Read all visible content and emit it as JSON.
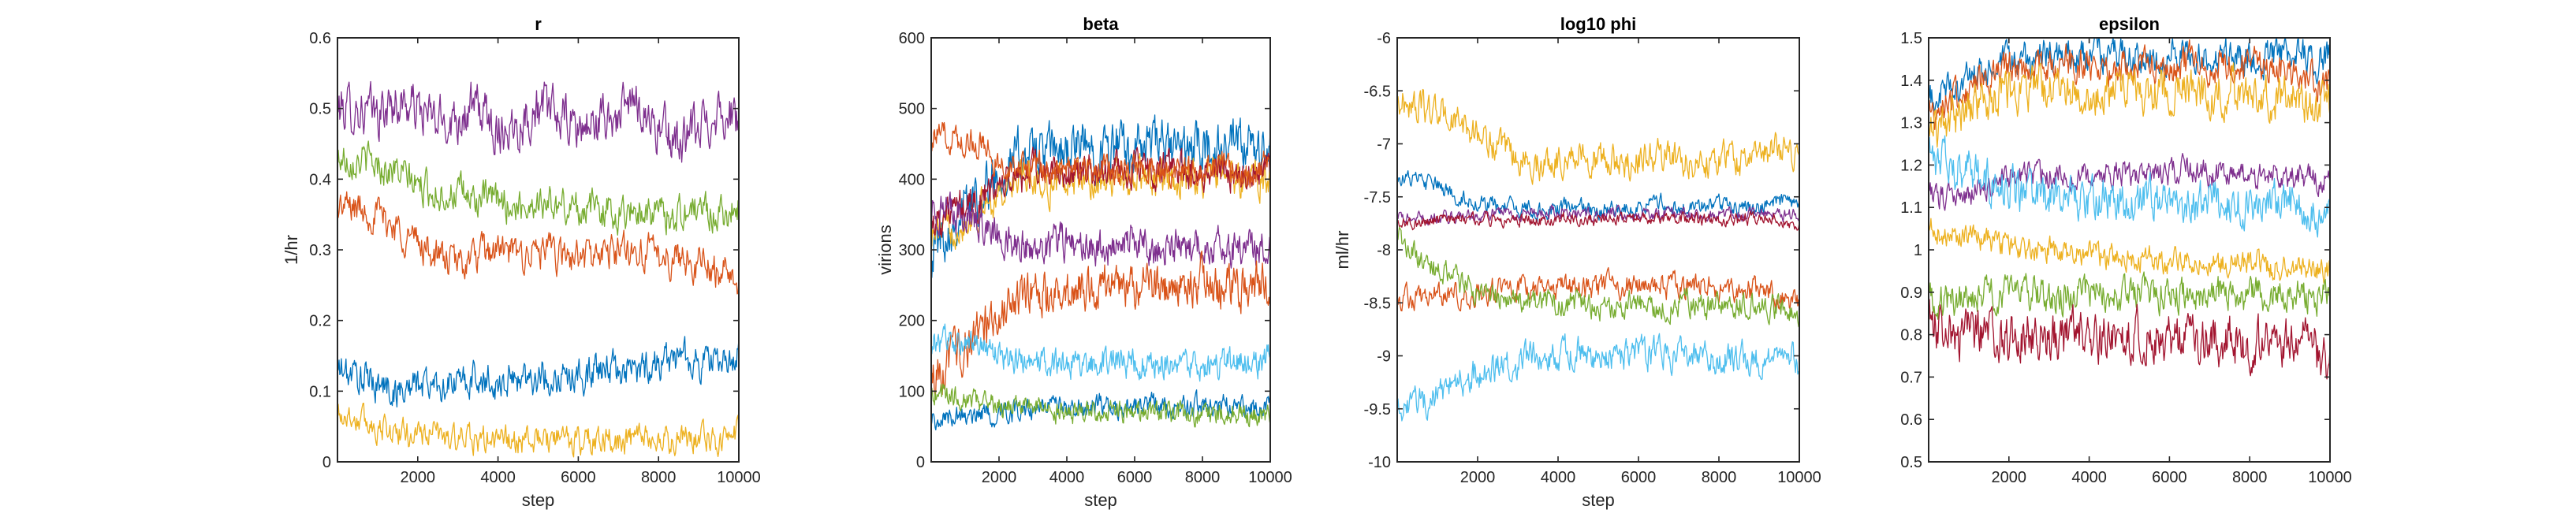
{
  "chart_data": [
    {
      "type": "line",
      "title": "r",
      "xlabel": "step",
      "ylabel": "1/hr",
      "xlim": [
        0,
        10000
      ],
      "ylim": [
        0,
        0.6
      ],
      "xticks": [
        2000,
        4000,
        6000,
        8000,
        10000
      ],
      "yticks": [
        0,
        0.1,
        0.2,
        0.3,
        0.4,
        0.5,
        0.6
      ],
      "x": [
        0,
        500,
        1000,
        1500,
        2000,
        2500,
        3000,
        3500,
        4000,
        4500,
        5000,
        5500,
        6000,
        6500,
        7000,
        7500,
        8000,
        8500,
        9000,
        9500,
        10000
      ],
      "series": [
        {
          "color": "#7E2F8E",
          "noise": 0.035,
          "values": [
            0.5,
            0.5,
            0.49,
            0.51,
            0.5,
            0.48,
            0.49,
            0.5,
            0.47,
            0.48,
            0.5,
            0.49,
            0.47,
            0.48,
            0.49,
            0.51,
            0.47,
            0.45,
            0.47,
            0.5,
            0.48
          ]
        },
        {
          "color": "#77AC30",
          "noise": 0.025,
          "values": [
            0.43,
            0.43,
            0.42,
            0.41,
            0.39,
            0.38,
            0.38,
            0.37,
            0.37,
            0.36,
            0.37,
            0.36,
            0.36,
            0.36,
            0.35,
            0.36,
            0.35,
            0.35,
            0.36,
            0.35,
            0.36
          ]
        },
        {
          "color": "#D95319",
          "noise": 0.025,
          "values": [
            0.36,
            0.36,
            0.35,
            0.33,
            0.31,
            0.29,
            0.28,
            0.29,
            0.3,
            0.29,
            0.3,
            0.29,
            0.29,
            0.29,
            0.3,
            0.3,
            0.29,
            0.29,
            0.28,
            0.27,
            0.26
          ]
        },
        {
          "color": "#0072BD",
          "noise": 0.025,
          "values": [
            0.13,
            0.12,
            0.11,
            0.1,
            0.11,
            0.11,
            0.11,
            0.12,
            0.11,
            0.12,
            0.12,
            0.12,
            0.12,
            0.13,
            0.13,
            0.13,
            0.14,
            0.15,
            0.14,
            0.14,
            0.15
          ]
        },
        {
          "color": "#EDB120",
          "noise": 0.02,
          "values": [
            0.07,
            0.06,
            0.05,
            0.04,
            0.04,
            0.04,
            0.03,
            0.03,
            0.03,
            0.03,
            0.03,
            0.03,
            0.03,
            0.03,
            0.03,
            0.03,
            0.03,
            0.03,
            0.03,
            0.03,
            0.04
          ]
        }
      ]
    },
    {
      "type": "line",
      "title": "beta",
      "xlabel": "step",
      "ylabel": "virions",
      "xlim": [
        0,
        10000
      ],
      "ylim": [
        0,
        600
      ],
      "xticks": [
        2000,
        4000,
        6000,
        8000,
        10000
      ],
      "yticks": [
        0,
        100,
        200,
        300,
        400,
        500,
        600
      ],
      "x": [
        0,
        500,
        1000,
        1500,
        2000,
        2500,
        3000,
        3500,
        4000,
        4500,
        5000,
        5500,
        6000,
        6500,
        7000,
        7500,
        8000,
        8500,
        9000,
        9500,
        10000
      ],
      "series": [
        {
          "color": "#0072BD",
          "noise": 35,
          "values": [
            300,
            330,
            360,
            380,
            410,
            430,
            440,
            440,
            440,
            445,
            440,
            445,
            440,
            450,
            445,
            440,
            445,
            440,
            445,
            440,
            440
          ]
        },
        {
          "color": "#EDB120",
          "noise": 25,
          "values": [
            320,
            330,
            340,
            360,
            380,
            400,
            400,
            390,
            400,
            400,
            395,
            400,
            405,
            400,
            395,
            400,
            400,
            405,
            400,
            400,
            400
          ]
        },
        {
          "color": "#A2142F",
          "noise": 25,
          "values": [
            340,
            350,
            360,
            370,
            390,
            400,
            410,
            410,
            405,
            410,
            410,
            415,
            410,
            410,
            415,
            410,
            410,
            415,
            410,
            410,
            415
          ]
        },
        {
          "color": "#D95319",
          "noise": 20,
          "values": [
            460,
            460,
            455,
            450,
            420,
            415,
            420,
            410,
            415,
            410,
            415,
            410,
            420,
            415,
            410,
            415,
            410,
            420,
            415,
            410,
            420
          ]
        },
        {
          "color": "#7E2F8E",
          "noise": 25,
          "values": [
            360,
            350,
            345,
            340,
            320,
            310,
            300,
            310,
            310,
            305,
            300,
            305,
            310,
            300,
            305,
            310,
            300,
            305,
            300,
            300,
            310
          ]
        },
        {
          "color": "#D95319",
          "noise": 30,
          "values": [
            120,
            140,
            160,
            190,
            210,
            230,
            240,
            240,
            245,
            250,
            250,
            255,
            250,
            250,
            245,
            250,
            255,
            245,
            250,
            245,
            250
          ]
        },
        {
          "color": "#4DBEEE",
          "noise": 20,
          "values": [
            170,
            170,
            165,
            160,
            150,
            145,
            140,
            140,
            140,
            135,
            140,
            140,
            135,
            140,
            140,
            140,
            135,
            140,
            140,
            140,
            145
          ]
        },
        {
          "color": "#0072BD",
          "noise": 15,
          "values": [
            60,
            62,
            65,
            68,
            70,
            72,
            75,
            75,
            78,
            78,
            80,
            78,
            80,
            82,
            80,
            78,
            80,
            80,
            80,
            80,
            82
          ]
        },
        {
          "color": "#77AC30",
          "noise": 15,
          "values": [
            100,
            95,
            90,
            85,
            80,
            75,
            75,
            70,
            70,
            70,
            68,
            70,
            68,
            70,
            68,
            66,
            68,
            70,
            68,
            66,
            68
          ]
        }
      ]
    },
    {
      "type": "line",
      "title": "log10 phi",
      "xlabel": "step",
      "ylabel": "ml/hr",
      "xlim": [
        0,
        10000
      ],
      "ylim": [
        -10,
        -6
      ],
      "xticks": [
        2000,
        4000,
        6000,
        8000,
        10000
      ],
      "yticks": [
        -10,
        -9.5,
        -9,
        -8.5,
        -8,
        -7.5,
        -7,
        -6.5,
        -6
      ],
      "x": [
        0,
        500,
        1000,
        1500,
        2000,
        2500,
        3000,
        3500,
        4000,
        4500,
        5000,
        5500,
        6000,
        6500,
        7000,
        7500,
        8000,
        8500,
        9000,
        9500,
        10000
      ],
      "series": [
        {
          "color": "#EDB120",
          "noise": 0.15,
          "values": [
            -6.6,
            -6.65,
            -6.7,
            -6.8,
            -6.9,
            -7.05,
            -7.15,
            -7.2,
            -7.15,
            -7.1,
            -7.15,
            -7.2,
            -7.15,
            -7.1,
            -7.15,
            -7.2,
            -7.1,
            -7.15,
            -7.1,
            -7.05,
            -7.1
          ]
        },
        {
          "color": "#0072BD",
          "noise": 0.08,
          "values": [
            -7.3,
            -7.35,
            -7.4,
            -7.5,
            -7.55,
            -7.6,
            -7.6,
            -7.65,
            -7.6,
            -7.6,
            -7.65,
            -7.6,
            -7.6,
            -7.55,
            -7.6,
            -7.6,
            -7.55,
            -7.6,
            -7.6,
            -7.55,
            -7.6
          ]
        },
        {
          "color": "#7E2F8E",
          "noise": 0.06,
          "values": [
            -7.7,
            -7.7,
            -7.7,
            -7.68,
            -7.68,
            -7.65,
            -7.65,
            -7.67,
            -7.65,
            -7.67,
            -7.66,
            -7.65,
            -7.67,
            -7.65,
            -7.66,
            -7.67,
            -7.65,
            -7.66,
            -7.65,
            -7.67,
            -7.66
          ]
        },
        {
          "color": "#A2142F",
          "noise": 0.06,
          "values": [
            -7.75,
            -7.75,
            -7.72,
            -7.72,
            -7.7,
            -7.72,
            -7.71,
            -7.72,
            -7.7,
            -7.71,
            -7.72,
            -7.7,
            -7.72,
            -7.71,
            -7.7,
            -7.72,
            -7.71,
            -7.72,
            -7.7,
            -7.71,
            -7.75
          ]
        },
        {
          "color": "#D95319",
          "noise": 0.12,
          "values": [
            -8.45,
            -8.45,
            -8.45,
            -8.42,
            -8.4,
            -8.38,
            -8.38,
            -8.36,
            -8.36,
            -8.35,
            -8.36,
            -8.35,
            -8.34,
            -8.36,
            -8.35,
            -8.34,
            -8.36,
            -8.35,
            -8.4,
            -8.45,
            -8.5
          ]
        },
        {
          "color": "#77AC30",
          "noise": 0.12,
          "values": [
            -7.9,
            -8.05,
            -8.2,
            -8.3,
            -8.4,
            -8.45,
            -8.5,
            -8.5,
            -8.5,
            -8.5,
            -8.55,
            -8.5,
            -8.5,
            -8.55,
            -8.5,
            -8.5,
            -8.55,
            -8.5,
            -8.5,
            -8.55,
            -8.6
          ]
        },
        {
          "color": "#4DBEEE",
          "noise": 0.15,
          "values": [
            -9.5,
            -9.45,
            -9.35,
            -9.25,
            -9.15,
            -9.1,
            -9.05,
            -9.0,
            -9.0,
            -8.95,
            -9.0,
            -9.0,
            -8.95,
            -9.0,
            -9.0,
            -9.05,
            -9.0,
            -9.0,
            -9.05,
            -9.0,
            -9.05
          ]
        }
      ]
    },
    {
      "type": "line",
      "title": "epsilon",
      "xlabel": "",
      "ylabel": "",
      "xlim": [
        0,
        10000
      ],
      "ylim": [
        0.5,
        1.5
      ],
      "xticks": [
        2000,
        4000,
        6000,
        8000,
        10000
      ],
      "yticks": [
        0.5,
        0.6,
        0.7,
        0.8,
        0.9,
        1,
        1.1,
        1.2,
        1.3,
        1.4,
        1.5
      ],
      "x": [
        0,
        500,
        1000,
        1500,
        2000,
        2500,
        3000,
        3500,
        4000,
        4500,
        5000,
        5500,
        6000,
        6500,
        7000,
        7500,
        8000,
        8500,
        9000,
        9500,
        10000
      ],
      "series": [
        {
          "color": "#0072BD",
          "noise": 0.04,
          "values": [
            1.35,
            1.38,
            1.4,
            1.42,
            1.44,
            1.45,
            1.46,
            1.46,
            1.45,
            1.46,
            1.46,
            1.45,
            1.46,
            1.46,
            1.45,
            1.46,
            1.45,
            1.46,
            1.46,
            1.45,
            1.45
          ]
        },
        {
          "color": "#D95319",
          "noise": 0.04,
          "values": [
            1.32,
            1.35,
            1.38,
            1.4,
            1.42,
            1.43,
            1.44,
            1.44,
            1.44,
            1.43,
            1.44,
            1.44,
            1.43,
            1.44,
            1.43,
            1.44,
            1.44,
            1.43,
            1.42,
            1.4,
            1.38
          ]
        },
        {
          "color": "#EDB120",
          "noise": 0.05,
          "values": [
            1.28,
            1.3,
            1.33,
            1.35,
            1.37,
            1.38,
            1.38,
            1.38,
            1.37,
            1.38,
            1.38,
            1.37,
            1.38,
            1.38,
            1.37,
            1.38,
            1.37,
            1.36,
            1.36,
            1.35,
            1.35
          ]
        },
        {
          "color": "#7E2F8E",
          "noise": 0.03,
          "values": [
            1.13,
            1.12,
            1.13,
            1.15,
            1.17,
            1.18,
            1.18,
            1.18,
            1.17,
            1.18,
            1.18,
            1.17,
            1.18,
            1.19,
            1.18,
            1.18,
            1.17,
            1.18,
            1.17,
            1.17,
            1.17
          ]
        },
        {
          "color": "#4DBEEE",
          "noise": 0.05,
          "values": [
            1.22,
            1.2,
            1.18,
            1.16,
            1.14,
            1.13,
            1.12,
            1.12,
            1.11,
            1.12,
            1.11,
            1.12,
            1.11,
            1.11,
            1.12,
            1.11,
            1.11,
            1.12,
            1.11,
            1.1,
            1.1
          ]
        },
        {
          "color": "#EDB120",
          "noise": 0.03,
          "values": [
            1.05,
            1.04,
            1.03,
            1.02,
            1.01,
            1.0,
            1.0,
            0.99,
            0.99,
            0.98,
            0.98,
            0.98,
            0.97,
            0.98,
            0.97,
            0.97,
            0.97,
            0.96,
            0.96,
            0.96,
            0.95
          ]
        },
        {
          "color": "#77AC30",
          "noise": 0.04,
          "values": [
            0.88,
            0.88,
            0.89,
            0.9,
            0.9,
            0.9,
            0.89,
            0.89,
            0.9,
            0.89,
            0.9,
            0.89,
            0.9,
            0.89,
            0.9,
            0.9,
            0.89,
            0.9,
            0.9,
            0.89,
            0.9
          ]
        },
        {
          "color": "#A2142F",
          "noise": 0.06,
          "values": [
            0.82,
            0.8,
            0.8,
            0.79,
            0.79,
            0.8,
            0.79,
            0.79,
            0.8,
            0.79,
            0.79,
            0.8,
            0.79,
            0.79,
            0.8,
            0.79,
            0.79,
            0.8,
            0.79,
            0.78,
            0.72
          ]
        }
      ]
    }
  ]
}
